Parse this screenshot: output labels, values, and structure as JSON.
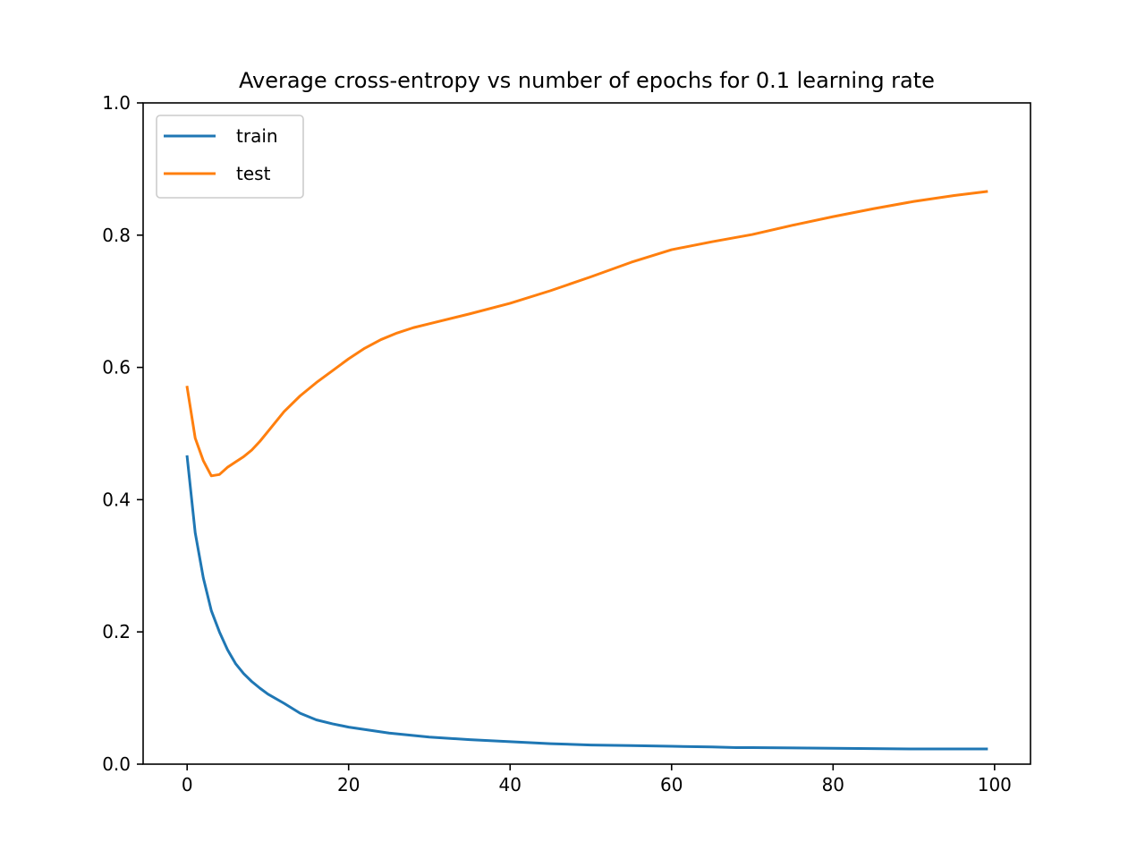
{
  "chart_data": {
    "type": "line",
    "title": "Average cross-entropy vs number of epochs for 0.1 learning rate",
    "xlabel": "",
    "ylabel": "",
    "xlim": [
      -5.45,
      104.45
    ],
    "ylim": [
      0.0,
      1.0
    ],
    "xticks": [
      0,
      20,
      40,
      60,
      80,
      100
    ],
    "yticks": [
      0.0,
      0.2,
      0.4,
      0.6,
      0.8,
      1.0
    ],
    "xtick_labels": [
      "0",
      "20",
      "40",
      "60",
      "80",
      "100"
    ],
    "ytick_labels": [
      "0.0",
      "0.2",
      "0.4",
      "0.6",
      "0.8",
      "1.0"
    ],
    "grid": false,
    "legend_position": "top-left",
    "series": [
      {
        "name": "train",
        "color": "#1f77b4",
        "x": [
          0,
          1,
          2,
          3,
          4,
          5,
          6,
          7,
          8,
          9,
          10,
          12,
          14,
          16,
          18,
          20,
          25,
          30,
          35,
          40,
          45,
          50,
          55,
          60,
          65,
          68,
          70,
          80,
          90,
          99
        ],
        "y": [
          0.465,
          0.35,
          0.282,
          0.232,
          0.2,
          0.173,
          0.152,
          0.137,
          0.125,
          0.115,
          0.106,
          0.092,
          0.077,
          0.067,
          0.061,
          0.056,
          0.047,
          0.041,
          0.037,
          0.034,
          0.031,
          0.029,
          0.028,
          0.027,
          0.026,
          0.025,
          0.025,
          0.024,
          0.023,
          0.023
        ]
      },
      {
        "name": "test",
        "color": "#ff7f0e",
        "x": [
          0,
          1,
          2,
          3,
          4,
          5,
          6,
          7,
          8,
          9,
          10,
          12,
          14,
          16,
          18,
          20,
          22,
          24,
          26,
          28,
          30,
          35,
          40,
          45,
          50,
          55,
          60,
          65,
          70,
          75,
          80,
          85,
          90,
          95,
          99
        ],
        "y": [
          0.57,
          0.493,
          0.459,
          0.436,
          0.438,
          0.449,
          0.457,
          0.465,
          0.475,
          0.488,
          0.503,
          0.533,
          0.557,
          0.577,
          0.595,
          0.613,
          0.629,
          0.642,
          0.652,
          0.66,
          0.666,
          0.681,
          0.697,
          0.716,
          0.737,
          0.759,
          0.778,
          0.79,
          0.801,
          0.815,
          0.828,
          0.84,
          0.851,
          0.86,
          0.866
        ]
      }
    ]
  }
}
